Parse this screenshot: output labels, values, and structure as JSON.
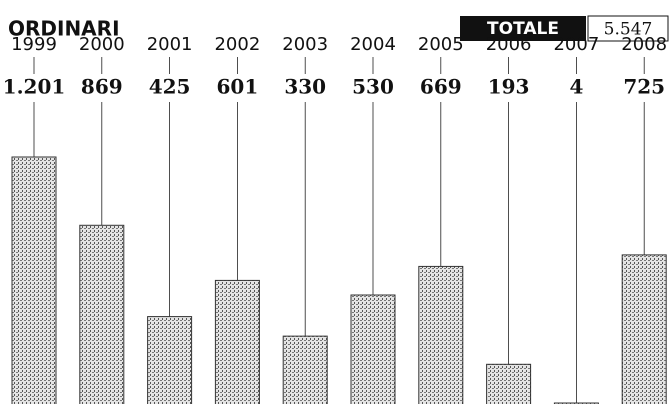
{
  "chart_data": {
    "type": "bar",
    "title": "ORDINARI",
    "total": {
      "label": "TOTALE",
      "value": 5547,
      "value_label": "5.547"
    },
    "categories": [
      "1999",
      "2000",
      "2001",
      "2002",
      "2003",
      "2004",
      "2005",
      "2006",
      "2007",
      "2008"
    ],
    "values": [
      1201,
      869,
      425,
      601,
      330,
      530,
      669,
      193,
      4,
      725
    ],
    "value_labels": [
      "1.201",
      "869",
      "425",
      "601",
      "330",
      "530",
      "669",
      "193",
      "4",
      "725"
    ],
    "color": "#9a9a9a"
  }
}
